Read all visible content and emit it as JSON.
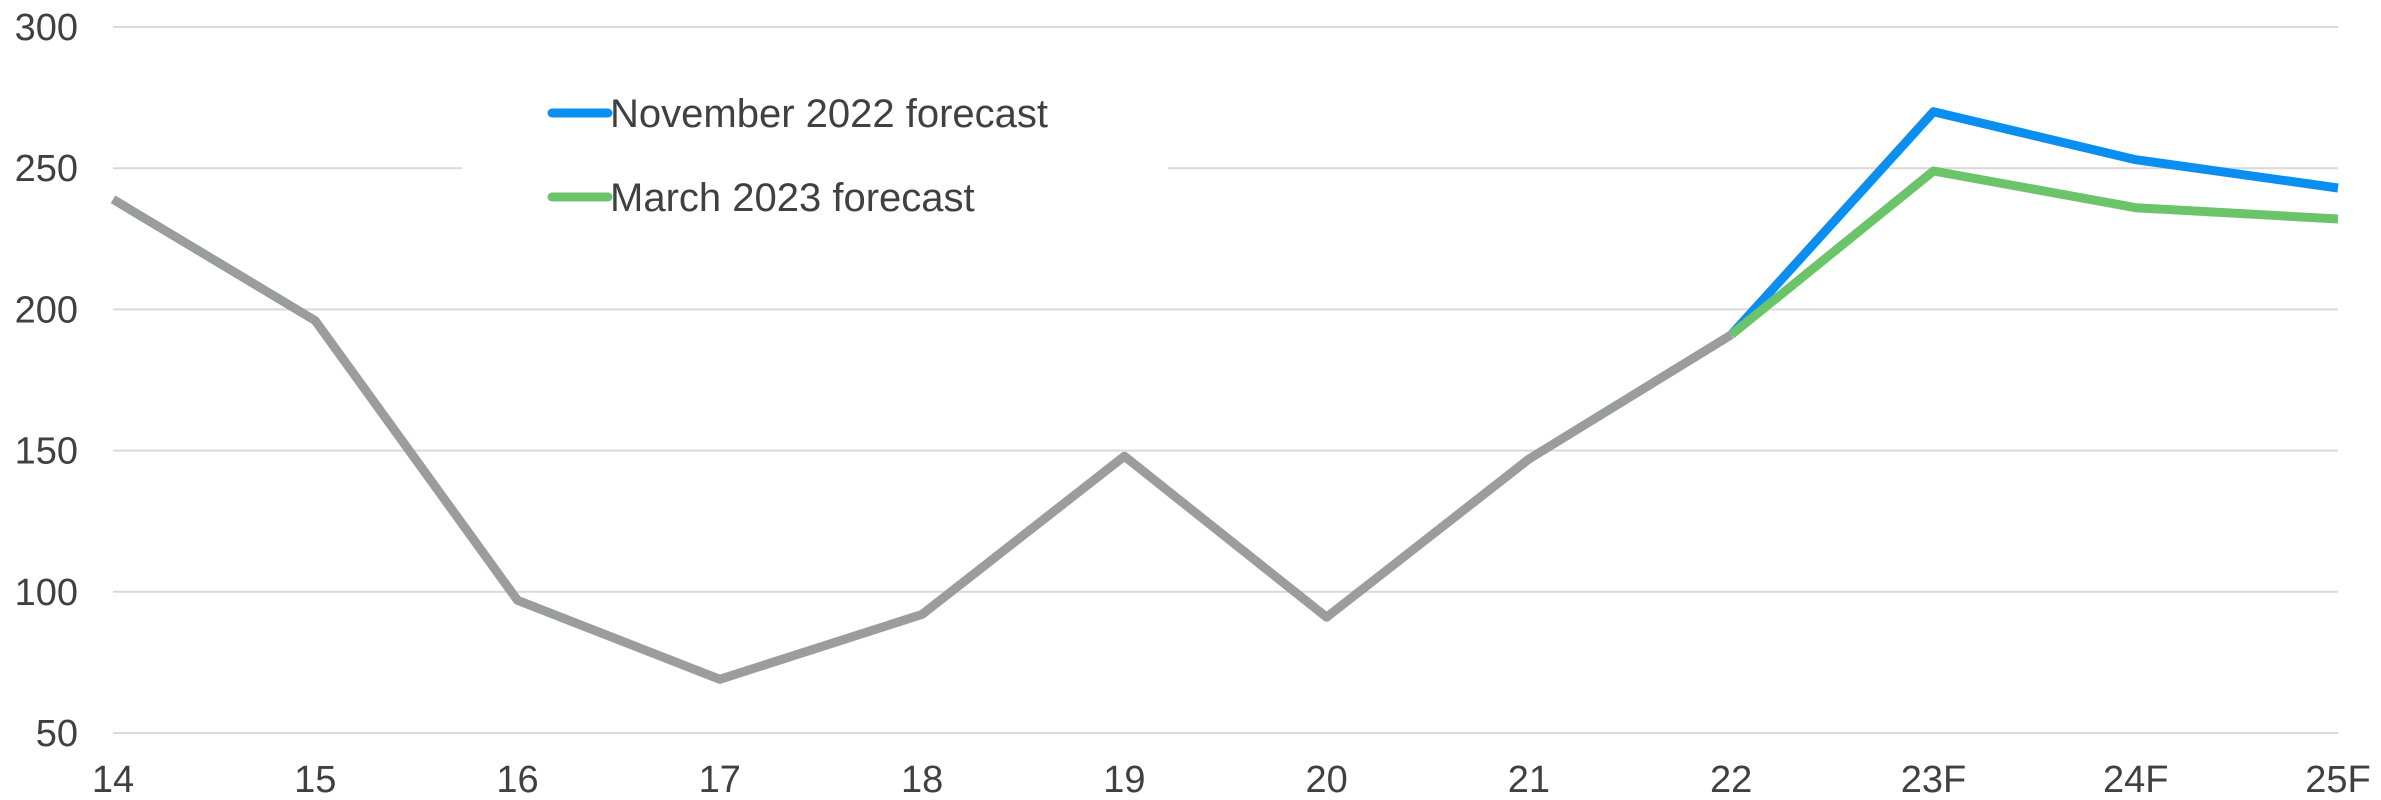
{
  "chart_data": {
    "type": "line",
    "categories": [
      "14",
      "15",
      "16",
      "17",
      "18",
      "19",
      "20",
      "21",
      "22",
      "23F",
      "24F",
      "25F"
    ],
    "ylim": [
      50,
      300
    ],
    "yticks": [
      50,
      100,
      150,
      200,
      250,
      300
    ],
    "grid": true,
    "legend_position": "top-left",
    "series": [
      {
        "name": "November 2022 forecast",
        "color": "#0a8ff0",
        "values": [
          null,
          null,
          null,
          null,
          null,
          null,
          null,
          null,
          191,
          270,
          253,
          243
        ]
      },
      {
        "name": "March 2023 forecast",
        "color": "#6cc46a",
        "values": [
          null,
          null,
          null,
          null,
          null,
          null,
          null,
          null,
          191,
          249,
          236,
          232
        ]
      },
      {
        "name": "",
        "color": "#9a9d9b",
        "values": [
          239,
          196,
          97,
          69,
          92,
          148,
          91,
          147,
          191,
          null,
          null,
          null
        ]
      }
    ]
  }
}
